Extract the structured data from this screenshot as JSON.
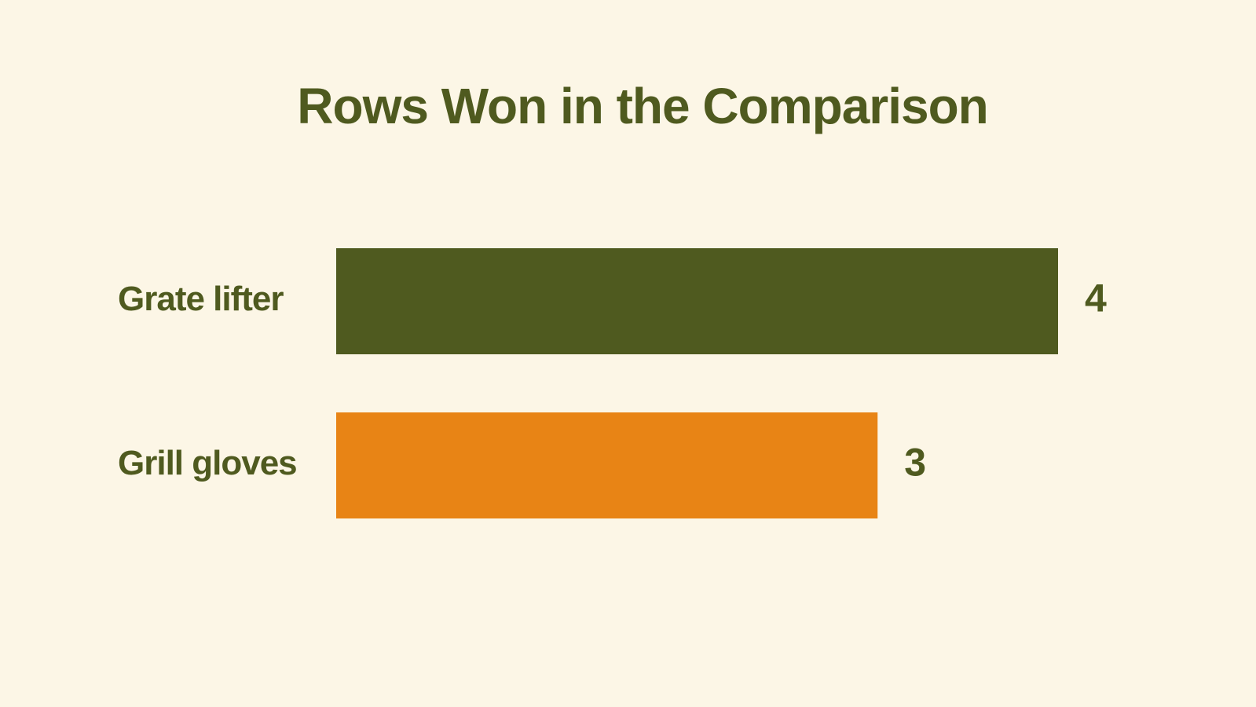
{
  "chart_data": {
    "type": "hbar",
    "title": "Rows Won in the Comparison",
    "categories": [
      "Grate lifter",
      "Grill gloves"
    ],
    "values": [
      4,
      3
    ],
    "colors": [
      "#4f5a1f",
      "#e88415"
    ]
  }
}
